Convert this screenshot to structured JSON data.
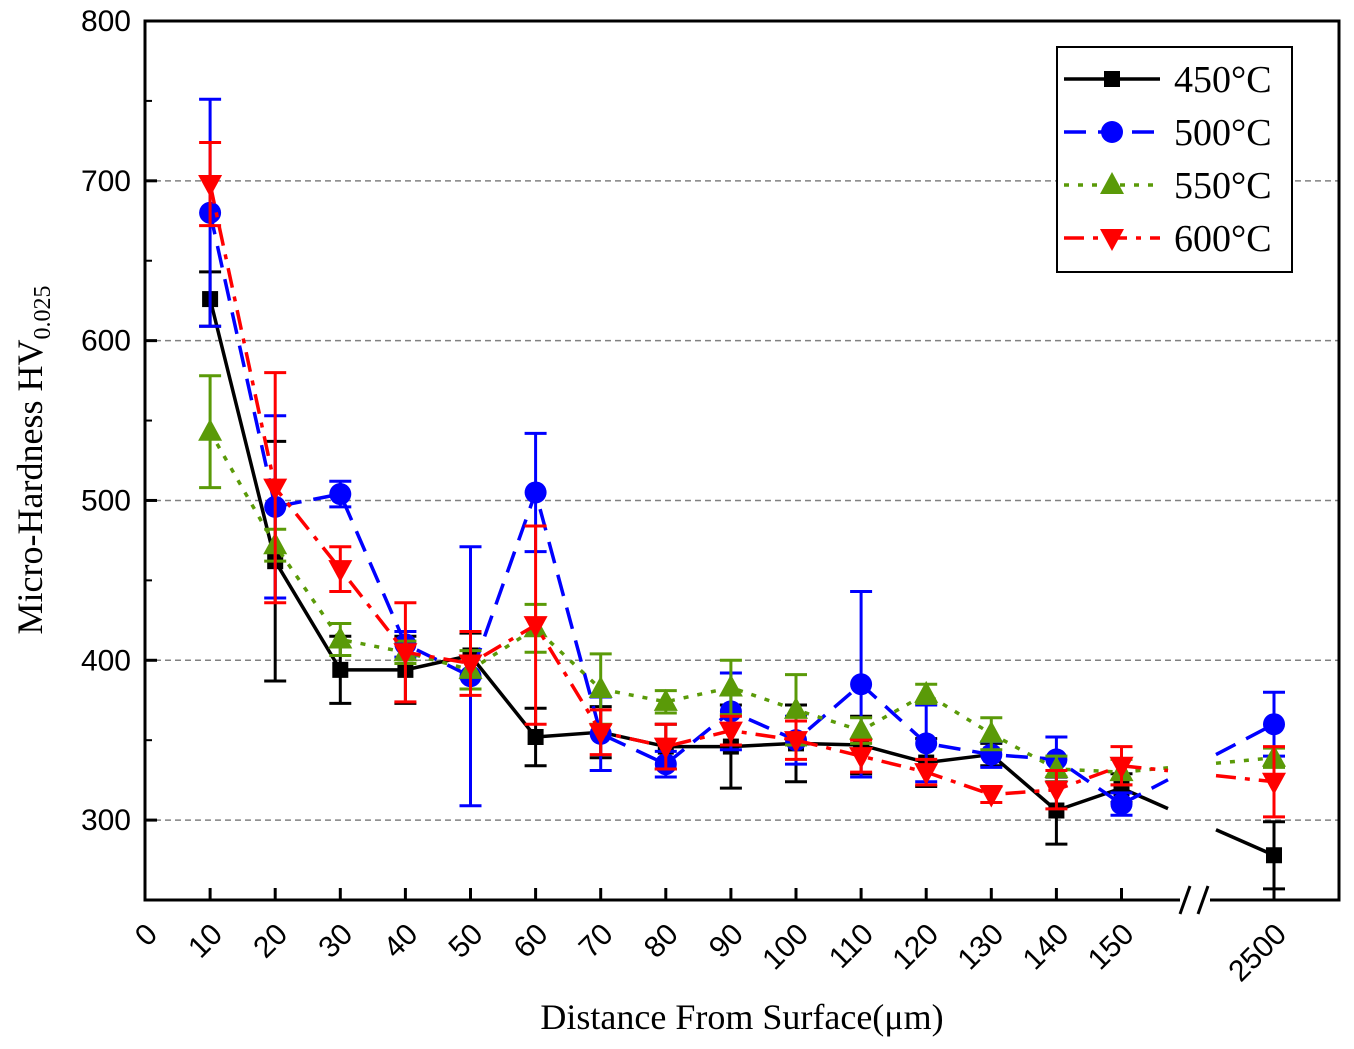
{
  "chart_data": {
    "type": "line",
    "xlabel": "Distance From Surface(μm)",
    "ylabel": "Micro-Hardness HV",
    "ylabel_subscript": "0.025",
    "ylim": [
      250,
      800
    ],
    "yticks": [
      300,
      400,
      500,
      600,
      700,
      800
    ],
    "xtick_labels": [
      "0",
      "10",
      "20",
      "30",
      "40",
      "50",
      "60",
      "70",
      "80",
      "90",
      "100",
      "110",
      "120",
      "130",
      "140",
      "150",
      "2500"
    ],
    "x_axis_break": "between 150 and 2500",
    "grid": "horizontal dashed",
    "legend_position": "top-right",
    "series": [
      {
        "name": "450°C",
        "color": "#000000",
        "dash": "solid",
        "marker": "square",
        "x": [
          "10",
          "20",
          "30",
          "40",
          "50",
          "60",
          "70",
          "80",
          "90",
          "100",
          "110",
          "120",
          "130",
          "140",
          "150",
          "2500"
        ],
        "values": [
          626,
          462,
          394,
          394,
          403,
          352,
          355,
          346,
          346,
          348,
          347,
          336,
          341,
          306,
          320,
          278
        ],
        "errors": [
          17,
          75,
          21,
          21,
          14,
          18,
          16,
          14,
          26,
          24,
          18,
          15,
          7,
          21,
          9,
          21
        ]
      },
      {
        "name": "500°C",
        "color": "#0000ff",
        "dash": "dashed",
        "marker": "circle",
        "x": [
          "10",
          "20",
          "30",
          "40",
          "50",
          "60",
          "70",
          "80",
          "90",
          "100",
          "110",
          "120",
          "130",
          "140",
          "150",
          "2500"
        ],
        "values": [
          680,
          496,
          504,
          410,
          390,
          505,
          354,
          335,
          368,
          350,
          385,
          348,
          341,
          338,
          310,
          360
        ],
        "errors": [
          71,
          57,
          8,
          8,
          81,
          37,
          23,
          8,
          24,
          15,
          58,
          24,
          8,
          14,
          7,
          20
        ]
      },
      {
        "name": "550°C",
        "color": "#5a9a08",
        "dash": "dotted",
        "marker": "triangle-up",
        "x": [
          "10",
          "20",
          "30",
          "40",
          "50",
          "60",
          "70",
          "80",
          "90",
          "100",
          "110",
          "120",
          "130",
          "140",
          "150",
          "2500"
        ],
        "values": [
          543,
          472,
          413,
          405,
          394,
          420,
          382,
          374,
          383,
          369,
          356,
          379,
          354,
          332,
          330,
          339
        ],
        "errors": [
          35,
          10,
          10,
          7,
          12,
          15,
          22,
          7,
          17,
          22,
          8,
          6,
          10,
          8,
          8,
          6
        ]
      },
      {
        "name": "600°C",
        "color": "#ff0000",
        "dash": "dash-dot",
        "marker": "triangle-down",
        "x": [
          "10",
          "20",
          "30",
          "40",
          "50",
          "60",
          "70",
          "80",
          "90",
          "100",
          "110",
          "120",
          "130",
          "140",
          "150",
          "2500"
        ],
        "values": [
          698,
          508,
          457,
          405,
          398,
          422,
          355,
          346,
          356,
          350,
          340,
          330,
          316,
          319,
          334,
          324
        ],
        "errors": [
          26,
          72,
          14,
          31,
          20,
          62,
          14,
          14,
          9,
          12,
          10,
          8,
          5,
          12,
          12,
          22
        ]
      }
    ]
  }
}
